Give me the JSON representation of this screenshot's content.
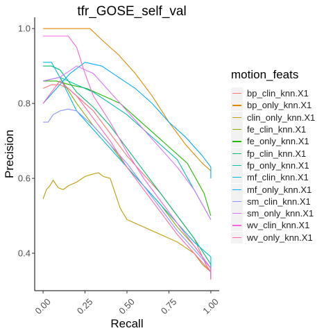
{
  "chart_data": {
    "type": "line",
    "title": "tfr_GOSE_self_val",
    "xlabel": "Recall",
    "ylabel": "Precision",
    "xlim": [
      -0.05,
      1.05
    ],
    "ylim": [
      0.3,
      1.03
    ],
    "x_ticks": [
      "0.00",
      "0.25",
      "0.50",
      "0.75",
      "1.00"
    ],
    "x_tick_values": [
      0,
      0.25,
      0.5,
      0.75,
      1.0
    ],
    "y_ticks": [
      "0.4",
      "0.6",
      "0.8",
      "1.0"
    ],
    "y_tick_values": [
      0.4,
      0.6,
      0.8,
      1.0
    ],
    "grid": false,
    "legend_title": "motion_feats",
    "legend_position": "right",
    "series": [
      {
        "name": "bp_clin_knn.X1",
        "color": "#F8766D",
        "x": [
          0,
          0.05,
          0.1,
          0.15,
          0.2,
          0.3,
          0.4,
          0.5,
          0.6,
          0.7,
          0.8,
          0.9,
          0.97,
          1.0,
          1.0
        ],
        "y": [
          0.84,
          0.85,
          0.85,
          0.84,
          0.82,
          0.78,
          0.72,
          0.66,
          0.61,
          0.56,
          0.5,
          0.44,
          0.37,
          0.35,
          0.33
        ]
      },
      {
        "name": "bp_only_knn.X1",
        "color": "#E18A00",
        "x": [
          0,
          0.1,
          0.2,
          0.28,
          0.35,
          0.45,
          0.55,
          0.65,
          0.75,
          0.85,
          0.95,
          1.0,
          1.0
        ],
        "y": [
          1.0,
          1.0,
          1.0,
          1.0,
          0.97,
          0.93,
          0.88,
          0.82,
          0.75,
          0.69,
          0.64,
          0.62,
          0.62
        ]
      },
      {
        "name": "clin_only_knn.X1",
        "color": "#BE9C00",
        "x": [
          0,
          0.02,
          0.04,
          0.06,
          0.09,
          0.12,
          0.15,
          0.2,
          0.25,
          0.3,
          0.33,
          0.36,
          0.4,
          0.43,
          0.46,
          0.5,
          0.6,
          0.7,
          0.8,
          0.9,
          0.95,
          1.0,
          1.0
        ],
        "y": [
          0.545,
          0.57,
          0.58,
          0.595,
          0.575,
          0.57,
          0.58,
          0.59,
          0.605,
          0.612,
          0.615,
          0.605,
          0.6,
          0.56,
          0.52,
          0.49,
          0.47,
          0.45,
          0.43,
          0.4,
          0.37,
          0.35,
          0.34
        ]
      },
      {
        "name": "fe_clin_knn.X1",
        "color": "#8CAB00",
        "x": [
          0,
          0.1,
          0.2,
          0.3,
          0.4,
          0.5,
          0.6,
          0.7,
          0.8,
          0.9,
          1.0,
          1.0
        ],
        "y": [
          0.86,
          0.87,
          0.8,
          0.74,
          0.69,
          0.63,
          0.58,
          0.53,
          0.47,
          0.42,
          0.36,
          0.34
        ]
      },
      {
        "name": "fe_only_knn.X1",
        "color": "#24B700",
        "x": [
          0,
          0.08,
          0.16,
          0.26,
          0.36,
          0.46,
          0.56,
          0.66,
          0.76,
          0.86,
          0.96,
          1.0
        ],
        "y": [
          0.86,
          0.86,
          0.85,
          0.84,
          0.82,
          0.8,
          0.76,
          0.72,
          0.68,
          0.64,
          0.56,
          0.5
        ]
      },
      {
        "name": "fp_clin_knn.X1",
        "color": "#00BE70",
        "x": [
          0,
          0.05,
          0.1,
          0.15,
          0.2,
          0.3,
          0.4,
          0.5,
          0.6,
          0.7,
          0.8,
          0.9,
          1.0,
          1.0
        ],
        "y": [
          0.9,
          0.9,
          0.89,
          0.86,
          0.83,
          0.79,
          0.74,
          0.68,
          0.62,
          0.56,
          0.5,
          0.44,
          0.37,
          0.34
        ]
      },
      {
        "name": "fp_only_knn.X1",
        "color": "#00C1AB",
        "x": [
          0,
          0.1,
          0.2,
          0.3,
          0.4,
          0.5,
          0.6,
          0.7,
          0.8,
          0.9,
          1.0
        ],
        "y": [
          0.86,
          0.87,
          0.85,
          0.83,
          0.8,
          0.77,
          0.73,
          0.69,
          0.65,
          0.57,
          0.49
        ]
      },
      {
        "name": "mf_clin_knn.X1",
        "color": "#00BBDA",
        "x": [
          0,
          0.05,
          0.1,
          0.2,
          0.3,
          0.4,
          0.5,
          0.6,
          0.7,
          0.8,
          0.9,
          1.0,
          1.0
        ],
        "y": [
          0.91,
          0.91,
          0.87,
          0.78,
          0.73,
          0.68,
          0.63,
          0.58,
          0.53,
          0.48,
          0.43,
          0.39,
          0.33
        ]
      },
      {
        "name": "mf_only_knn.X1",
        "color": "#00ACFC",
        "x": [
          0,
          0.08,
          0.16,
          0.25,
          0.35,
          0.45,
          0.55,
          0.65,
          0.75,
          0.85,
          0.95,
          1.0,
          1.0
        ],
        "y": [
          0.8,
          0.84,
          0.88,
          0.91,
          0.9,
          0.87,
          0.84,
          0.8,
          0.75,
          0.71,
          0.66,
          0.63,
          0.6
        ]
      },
      {
        "name": "sm_clin_knn.X1",
        "color": "#8B93FF",
        "x": [
          0,
          0.03,
          0.06,
          0.1,
          0.15,
          0.2,
          0.3,
          0.4,
          0.5,
          0.6,
          0.7,
          0.8,
          0.9,
          1.0,
          1.0
        ],
        "y": [
          0.75,
          0.75,
          0.77,
          0.78,
          0.785,
          0.78,
          0.74,
          0.69,
          0.64,
          0.58,
          0.52,
          0.46,
          0.41,
          0.36,
          0.33
        ]
      },
      {
        "name": "sm_only_knn.X1",
        "color": "#D575FE",
        "x": [
          0,
          0.1,
          0.2,
          0.3,
          0.4,
          0.5,
          0.6,
          0.7,
          0.8,
          0.9,
          1.0
        ],
        "y": [
          0.86,
          0.87,
          0.9,
          0.88,
          0.83,
          0.78,
          0.73,
          0.68,
          0.63,
          0.57,
          0.49
        ]
      },
      {
        "name": "wv_clin_knn.X1",
        "color": "#F962DD",
        "x": [
          0,
          0.08,
          0.15,
          0.2,
          0.25,
          0.3,
          0.4,
          0.5,
          0.6,
          0.7,
          0.8,
          0.9,
          1.0,
          1.0
        ],
        "y": [
          0.98,
          0.98,
          0.98,
          0.95,
          0.88,
          0.82,
          0.75,
          0.67,
          0.6,
          0.54,
          0.48,
          0.42,
          0.36,
          0.33
        ]
      },
      {
        "name": "wv_only_knn.X1",
        "color": "#FF65AC",
        "x": [
          0,
          0.1,
          0.2,
          0.3,
          0.4,
          0.5,
          0.6,
          0.7,
          0.8,
          0.9,
          1.0,
          1.0
        ],
        "y": [
          0.8,
          0.86,
          0.82,
          0.76,
          0.7,
          0.63,
          0.57,
          0.51,
          0.45,
          0.4,
          0.35,
          0.33
        ]
      }
    ]
  }
}
